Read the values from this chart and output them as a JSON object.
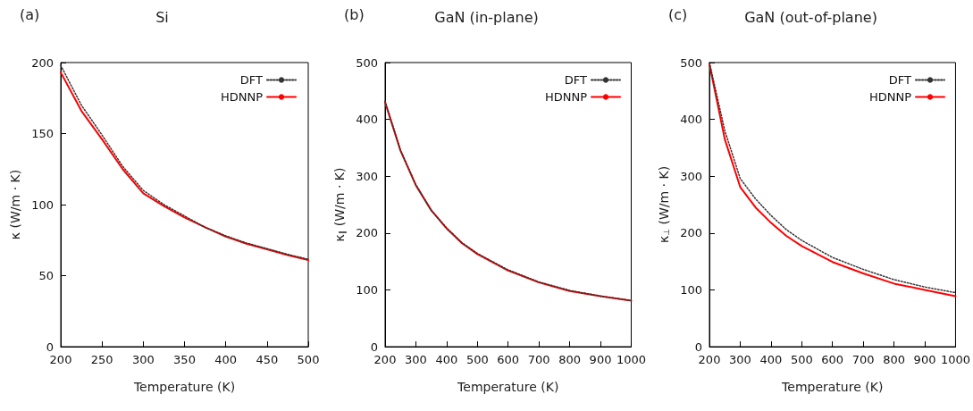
{
  "chart_data": [
    {
      "type": "line",
      "title": "Si",
      "annotations": [
        "(a)"
      ],
      "xlabel": "Temperature (K)",
      "ylabel": "κ (W/m · K)",
      "xlim": [
        200,
        500
      ],
      "xticks": [
        200,
        250,
        300,
        350,
        400,
        450,
        500
      ],
      "ylim": [
        0,
        200
      ],
      "yticks": [
        0,
        50,
        100,
        150,
        200
      ],
      "grid": false,
      "legend": "top right",
      "marker": "none",
      "series": [
        {
          "name": "DFT",
          "color": "#333333",
          "line_style": "dotted",
          "x": [
            200,
            225,
            250,
            275,
            300,
            325,
            350,
            375,
            400,
            425,
            450,
            475,
            500
          ],
          "values": [
            198,
            170,
            149,
            127,
            110,
            100,
            92,
            84,
            78,
            73,
            69,
            65,
            61.5
          ]
        },
        {
          "name": "HDNNP",
          "color": "#ff0000",
          "line_style": "solid",
          "x": [
            200,
            225,
            250,
            275,
            300,
            325,
            350,
            375,
            400,
            425,
            450,
            475,
            500
          ],
          "values": [
            193,
            166,
            146,
            125,
            108,
            99,
            91,
            84,
            77.5,
            72.5,
            68.5,
            64.5,
            61
          ]
        }
      ]
    },
    {
      "type": "line",
      "title": "GaN (in-plane)",
      "annotations": [
        "(b)"
      ],
      "xlabel": "Temperature (K)",
      "ylabel": "κ$_{∥}$ (W/m · K)",
      "xlim": [
        200,
        1000
      ],
      "xticks": [
        200,
        300,
        400,
        500,
        600,
        700,
        800,
        900,
        1000
      ],
      "ylim": [
        0,
        500
      ],
      "yticks": [
        0,
        100,
        200,
        300,
        400,
        500
      ],
      "grid": false,
      "legend": "top right",
      "marker": "none",
      "series": [
        {
          "name": "DFT",
          "color": "#333333",
          "line_style": "dotted",
          "x": [
            200,
            250,
            300,
            350,
            400,
            450,
            500,
            600,
            700,
            800,
            900,
            1000
          ],
          "values": [
            432,
            346,
            285,
            240,
            209,
            183,
            164,
            135,
            114,
            99,
            89,
            81
          ]
        },
        {
          "name": "HDNNP",
          "color": "#ff0000",
          "line_style": "solid",
          "x": [
            200,
            250,
            300,
            350,
            400,
            450,
            500,
            600,
            700,
            800,
            900,
            1000
          ],
          "values": [
            430,
            345,
            284,
            240,
            208,
            182,
            163,
            134,
            113,
            98,
            89,
            81
          ]
        }
      ]
    },
    {
      "type": "line",
      "title": "GaN (out-of-plane)",
      "annotations": [
        "(c)"
      ],
      "xlabel": "Temperature (K)",
      "ylabel": "κ$_{⊥}$ (W/m · K)",
      "xlim": [
        200,
        1000
      ],
      "xticks": [
        200,
        300,
        400,
        500,
        600,
        700,
        800,
        900,
        1000
      ],
      "ylim": [
        0,
        500
      ],
      "yticks": [
        0,
        100,
        200,
        300,
        400,
        500
      ],
      "grid": false,
      "legend": "top right",
      "marker": "none",
      "series": [
        {
          "name": "DFT",
          "color": "#333333",
          "line_style": "dotted",
          "x": [
            200,
            250,
            300,
            350,
            400,
            450,
            500,
            600,
            700,
            800,
            900,
            1000
          ],
          "values": [
            500,
            380,
            296,
            260,
            231,
            206,
            187,
            157,
            136,
            118,
            105,
            95
          ]
        },
        {
          "name": "HDNNP",
          "color": "#ff0000",
          "line_style": "solid",
          "x": [
            200,
            250,
            300,
            350,
            400,
            450,
            500,
            600,
            700,
            800,
            900,
            1000
          ],
          "values": [
            497,
            365,
            281,
            245,
            218,
            195,
            177,
            149,
            129,
            111,
            100,
            89
          ]
        }
      ]
    }
  ]
}
